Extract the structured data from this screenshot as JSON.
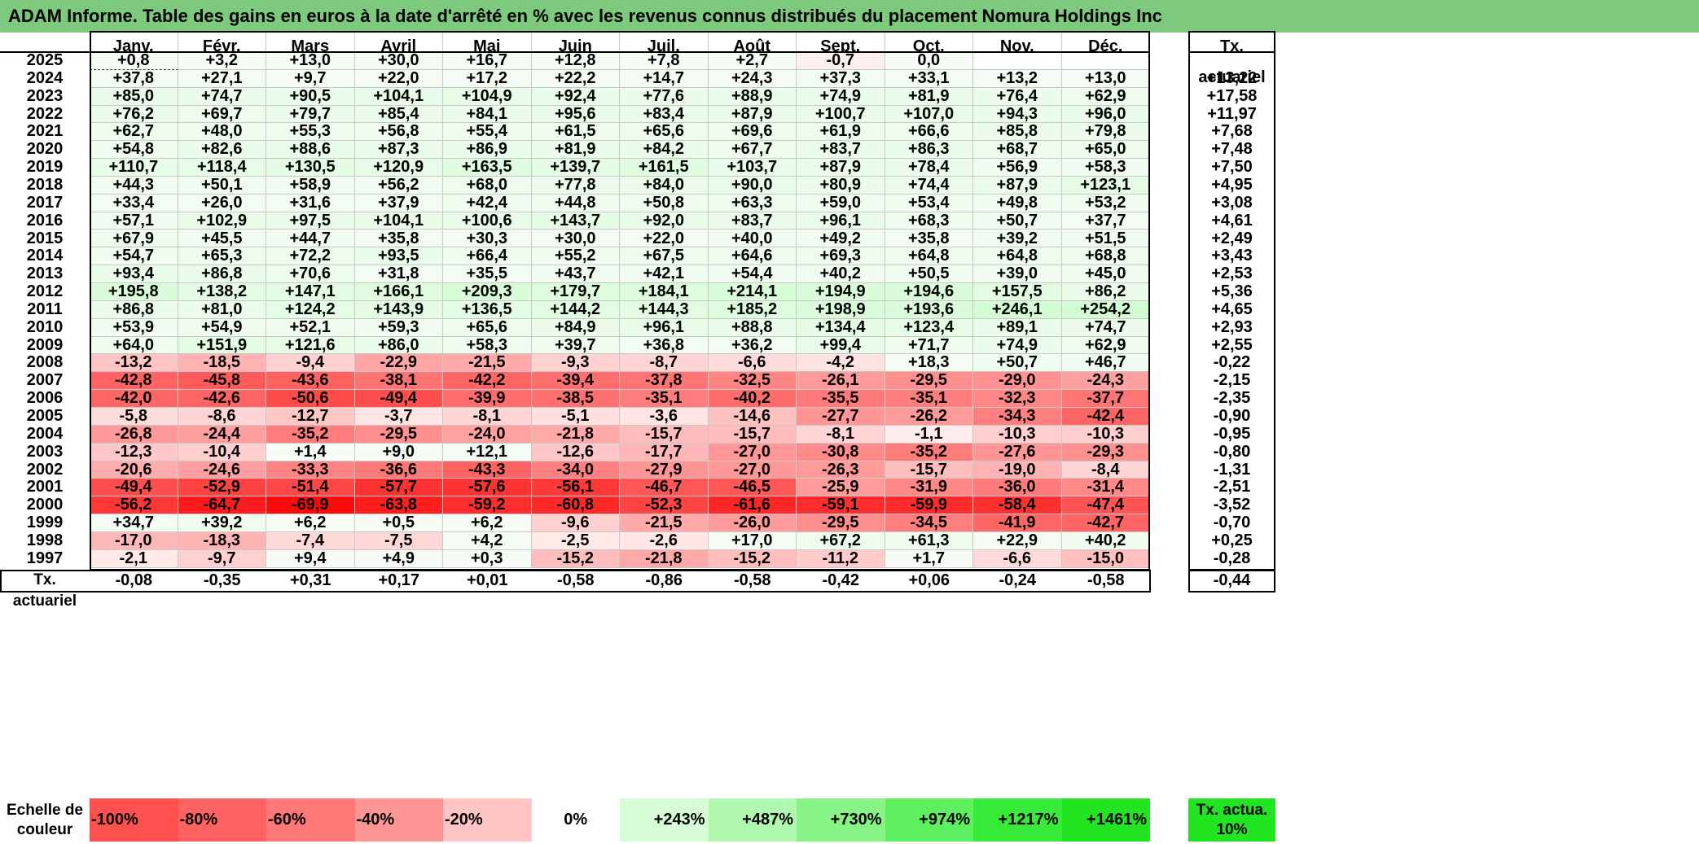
{
  "title": "ADAM Informe. Table des gains en euros à la date d'arrêté en % avec les revenus connus distribués du placement Nomura Holdings Inc",
  "months": [
    "Janv.",
    "Févr.",
    "Mars",
    "Avril",
    "Mai",
    "Juin",
    "Juil.",
    "Août",
    "Sept.",
    "Oct.",
    "Nov.",
    "Déc."
  ],
  "tx_header": "Tx. actuariel",
  "rows": [
    {
      "year": "2025",
      "values": [
        "+0,8",
        "+3,2",
        "+13,0",
        "+30,0",
        "+16,7",
        "+12,8",
        "+7,8",
        "+2,7",
        "-0,7",
        "0,0",
        "",
        ""
      ],
      "tx": ""
    },
    {
      "year": "2024",
      "values": [
        "+37,8",
        "+27,1",
        "+9,7",
        "+22,0",
        "+17,2",
        "+22,2",
        "+14,7",
        "+24,3",
        "+37,3",
        "+33,1",
        "+13,2",
        "+13,0"
      ],
      "tx": "+13,22"
    },
    {
      "year": "2023",
      "values": [
        "+85,0",
        "+74,7",
        "+90,5",
        "+104,1",
        "+104,9",
        "+92,4",
        "+77,6",
        "+88,9",
        "+74,9",
        "+81,9",
        "+76,4",
        "+62,9"
      ],
      "tx": "+17,58"
    },
    {
      "year": "2022",
      "values": [
        "+76,2",
        "+69,7",
        "+79,7",
        "+85,4",
        "+84,1",
        "+95,6",
        "+83,4",
        "+87,9",
        "+100,7",
        "+107,0",
        "+94,3",
        "+96,0"
      ],
      "tx": "+11,97"
    },
    {
      "year": "2021",
      "values": [
        "+62,7",
        "+48,0",
        "+55,3",
        "+56,8",
        "+55,4",
        "+61,5",
        "+65,6",
        "+69,6",
        "+61,9",
        "+66,6",
        "+85,8",
        "+79,8"
      ],
      "tx": "+7,68"
    },
    {
      "year": "2020",
      "values": [
        "+54,8",
        "+82,6",
        "+88,6",
        "+87,3",
        "+86,9",
        "+81,9",
        "+84,2",
        "+67,7",
        "+83,7",
        "+86,3",
        "+68,7",
        "+65,0"
      ],
      "tx": "+7,48"
    },
    {
      "year": "2019",
      "values": [
        "+110,7",
        "+118,4",
        "+130,5",
        "+120,9",
        "+163,5",
        "+139,7",
        "+161,5",
        "+103,7",
        "+87,9",
        "+78,4",
        "+56,9",
        "+58,3"
      ],
      "tx": "+7,50"
    },
    {
      "year": "2018",
      "values": [
        "+44,3",
        "+50,1",
        "+58,9",
        "+56,2",
        "+68,0",
        "+77,8",
        "+84,0",
        "+90,0",
        "+80,9",
        "+74,4",
        "+87,9",
        "+123,1"
      ],
      "tx": "+4,95"
    },
    {
      "year": "2017",
      "values": [
        "+33,4",
        "+26,0",
        "+31,6",
        "+37,9",
        "+42,4",
        "+44,8",
        "+50,8",
        "+63,3",
        "+59,0",
        "+53,4",
        "+49,8",
        "+53,2"
      ],
      "tx": "+3,08"
    },
    {
      "year": "2016",
      "values": [
        "+57,1",
        "+102,9",
        "+97,5",
        "+104,1",
        "+100,6",
        "+143,7",
        "+92,0",
        "+83,7",
        "+96,1",
        "+68,3",
        "+50,7",
        "+37,7"
      ],
      "tx": "+4,61"
    },
    {
      "year": "2015",
      "values": [
        "+67,9",
        "+45,5",
        "+44,7",
        "+35,8",
        "+30,3",
        "+30,0",
        "+22,0",
        "+40,0",
        "+49,2",
        "+35,8",
        "+39,2",
        "+51,5"
      ],
      "tx": "+2,49"
    },
    {
      "year": "2014",
      "values": [
        "+54,7",
        "+65,3",
        "+72,2",
        "+93,5",
        "+66,4",
        "+55,2",
        "+67,5",
        "+64,6",
        "+69,3",
        "+64,8",
        "+64,8",
        "+68,8"
      ],
      "tx": "+3,43"
    },
    {
      "year": "2013",
      "values": [
        "+93,4",
        "+86,8",
        "+70,6",
        "+31,8",
        "+35,5",
        "+43,7",
        "+42,1",
        "+54,4",
        "+40,2",
        "+50,5",
        "+39,0",
        "+45,0"
      ],
      "tx": "+2,53"
    },
    {
      "year": "2012",
      "values": [
        "+195,8",
        "+138,2",
        "+147,1",
        "+166,1",
        "+209,3",
        "+179,7",
        "+184,1",
        "+214,1",
        "+194,9",
        "+194,6",
        "+157,5",
        "+86,2"
      ],
      "tx": "+5,36"
    },
    {
      "year": "2011",
      "values": [
        "+86,8",
        "+81,0",
        "+124,2",
        "+143,9",
        "+136,5",
        "+144,2",
        "+144,3",
        "+185,2",
        "+198,9",
        "+193,6",
        "+246,1",
        "+254,2"
      ],
      "tx": "+4,65"
    },
    {
      "year": "2010",
      "values": [
        "+53,9",
        "+54,9",
        "+52,1",
        "+59,3",
        "+65,6",
        "+84,9",
        "+96,1",
        "+88,8",
        "+134,4",
        "+123,4",
        "+89,1",
        "+74,7"
      ],
      "tx": "+2,93"
    },
    {
      "year": "2009",
      "values": [
        "+64,0",
        "+151,9",
        "+121,6",
        "+86,0",
        "+58,3",
        "+39,7",
        "+36,8",
        "+36,2",
        "+99,4",
        "+71,7",
        "+74,9",
        "+62,9"
      ],
      "tx": "+2,55"
    },
    {
      "year": "2008",
      "values": [
        "-13,2",
        "-18,5",
        "-9,4",
        "-22,9",
        "-21,5",
        "-9,3",
        "-8,7",
        "-6,6",
        "-4,2",
        "+18,3",
        "+50,7",
        "+46,7"
      ],
      "tx": "-0,22"
    },
    {
      "year": "2007",
      "values": [
        "-42,8",
        "-45,8",
        "-43,6",
        "-38,1",
        "-42,2",
        "-39,4",
        "-37,8",
        "-32,5",
        "-26,1",
        "-29,5",
        "-29,0",
        "-24,3"
      ],
      "tx": "-2,15"
    },
    {
      "year": "2006",
      "values": [
        "-42,0",
        "-42,6",
        "-50,6",
        "-49,4",
        "-39,9",
        "-38,5",
        "-35,1",
        "-40,2",
        "-35,5",
        "-35,1",
        "-32,3",
        "-37,7"
      ],
      "tx": "-2,35"
    },
    {
      "year": "2005",
      "values": [
        "-5,8",
        "-8,6",
        "-12,7",
        "-3,7",
        "-8,1",
        "-5,1",
        "-3,6",
        "-14,6",
        "-27,7",
        "-26,2",
        "-34,3",
        "-42,4"
      ],
      "tx": "-0,90"
    },
    {
      "year": "2004",
      "values": [
        "-26,8",
        "-24,4",
        "-35,2",
        "-29,5",
        "-24,0",
        "-21,8",
        "-15,7",
        "-15,7",
        "-8,1",
        "-1,1",
        "-10,3",
        "-10,3"
      ],
      "tx": "-0,95"
    },
    {
      "year": "2003",
      "values": [
        "-12,3",
        "-10,4",
        "+1,4",
        "+9,0",
        "+12,1",
        "-12,6",
        "-17,7",
        "-27,0",
        "-30,8",
        "-35,2",
        "-27,6",
        "-29,3"
      ],
      "tx": "-0,80"
    },
    {
      "year": "2002",
      "values": [
        "-20,6",
        "-24,6",
        "-33,3",
        "-36,6",
        "-43,3",
        "-34,0",
        "-27,9",
        "-27,0",
        "-26,3",
        "-15,7",
        "-19,0",
        "-8,4"
      ],
      "tx": "-1,31"
    },
    {
      "year": "2001",
      "values": [
        "-49,4",
        "-52,9",
        "-51,4",
        "-57,7",
        "-57,6",
        "-56,1",
        "-46,7",
        "-46,5",
        "-25,9",
        "-31,9",
        "-36,0",
        "-31,4"
      ],
      "tx": "-2,51"
    },
    {
      "year": "2000",
      "values": [
        "-56,2",
        "-64,7",
        "-69,9",
        "-63,8",
        "-59,2",
        "-60,8",
        "-52,3",
        "-61,6",
        "-59,1",
        "-59,9",
        "-58,4",
        "-47,4"
      ],
      "tx": "-3,52"
    },
    {
      "year": "1999",
      "values": [
        "+34,7",
        "+39,2",
        "+6,2",
        "+0,5",
        "+6,2",
        "-9,6",
        "-21,5",
        "-26,0",
        "-29,5",
        "-34,5",
        "-41,9",
        "-42,7"
      ],
      "tx": "-0,70"
    },
    {
      "year": "1998",
      "values": [
        "-17,0",
        "-18,3",
        "-7,4",
        "-7,5",
        "+4,2",
        "-2,5",
        "-2,6",
        "+17,0",
        "+67,2",
        "+61,3",
        "+22,9",
        "+40,2"
      ],
      "tx": "+0,25"
    },
    {
      "year": "1997",
      "values": [
        "-2,1",
        "-9,7",
        "+9,4",
        "+4,9",
        "+0,3",
        "-15,2",
        "-21,8",
        "-15,2",
        "-11,2",
        "+1,7",
        "-6,6",
        "-15,0"
      ],
      "tx": "-0,28"
    }
  ],
  "summary": {
    "label": "Tx. actuariel",
    "values": [
      "-0,08",
      "-0,35",
      "+0,31",
      "+0,17",
      "+0,01",
      "-0,58",
      "-0,86",
      "-0,58",
      "-0,42",
      "+0,06",
      "-0,24",
      "-0,58"
    ],
    "total": "-0,44"
  },
  "scale": {
    "label": "Echelle de couleur",
    "items": [
      {
        "text": "-100%",
        "color": "#ff5050"
      },
      {
        "text": "-80%",
        "color": "#ff6262"
      },
      {
        "text": "-60%",
        "color": "#ff7777"
      },
      {
        "text": "-40%",
        "color": "#ff9696"
      },
      {
        "text": "-20%",
        "color": "#ffc4c4"
      },
      {
        "text": "0%",
        "color": "#ffffff"
      },
      {
        "text": "+243%",
        "color": "#d6fcd6"
      },
      {
        "text": "+487%",
        "color": "#b0f8b0"
      },
      {
        "text": "+730%",
        "color": "#88f488"
      },
      {
        "text": "+974%",
        "color": "#5eef5e"
      },
      {
        "text": "+1217%",
        "color": "#38eb38"
      },
      {
        "text": "+1461%",
        "color": "#22e522"
      }
    ],
    "tx_label": "Tx. actua. 10%",
    "tx_color": "#22e522"
  },
  "colors": {
    "title_bg": "#7dc97d",
    "positive_max": "#c8fac8",
    "negative_max": "#ff0000"
  }
}
